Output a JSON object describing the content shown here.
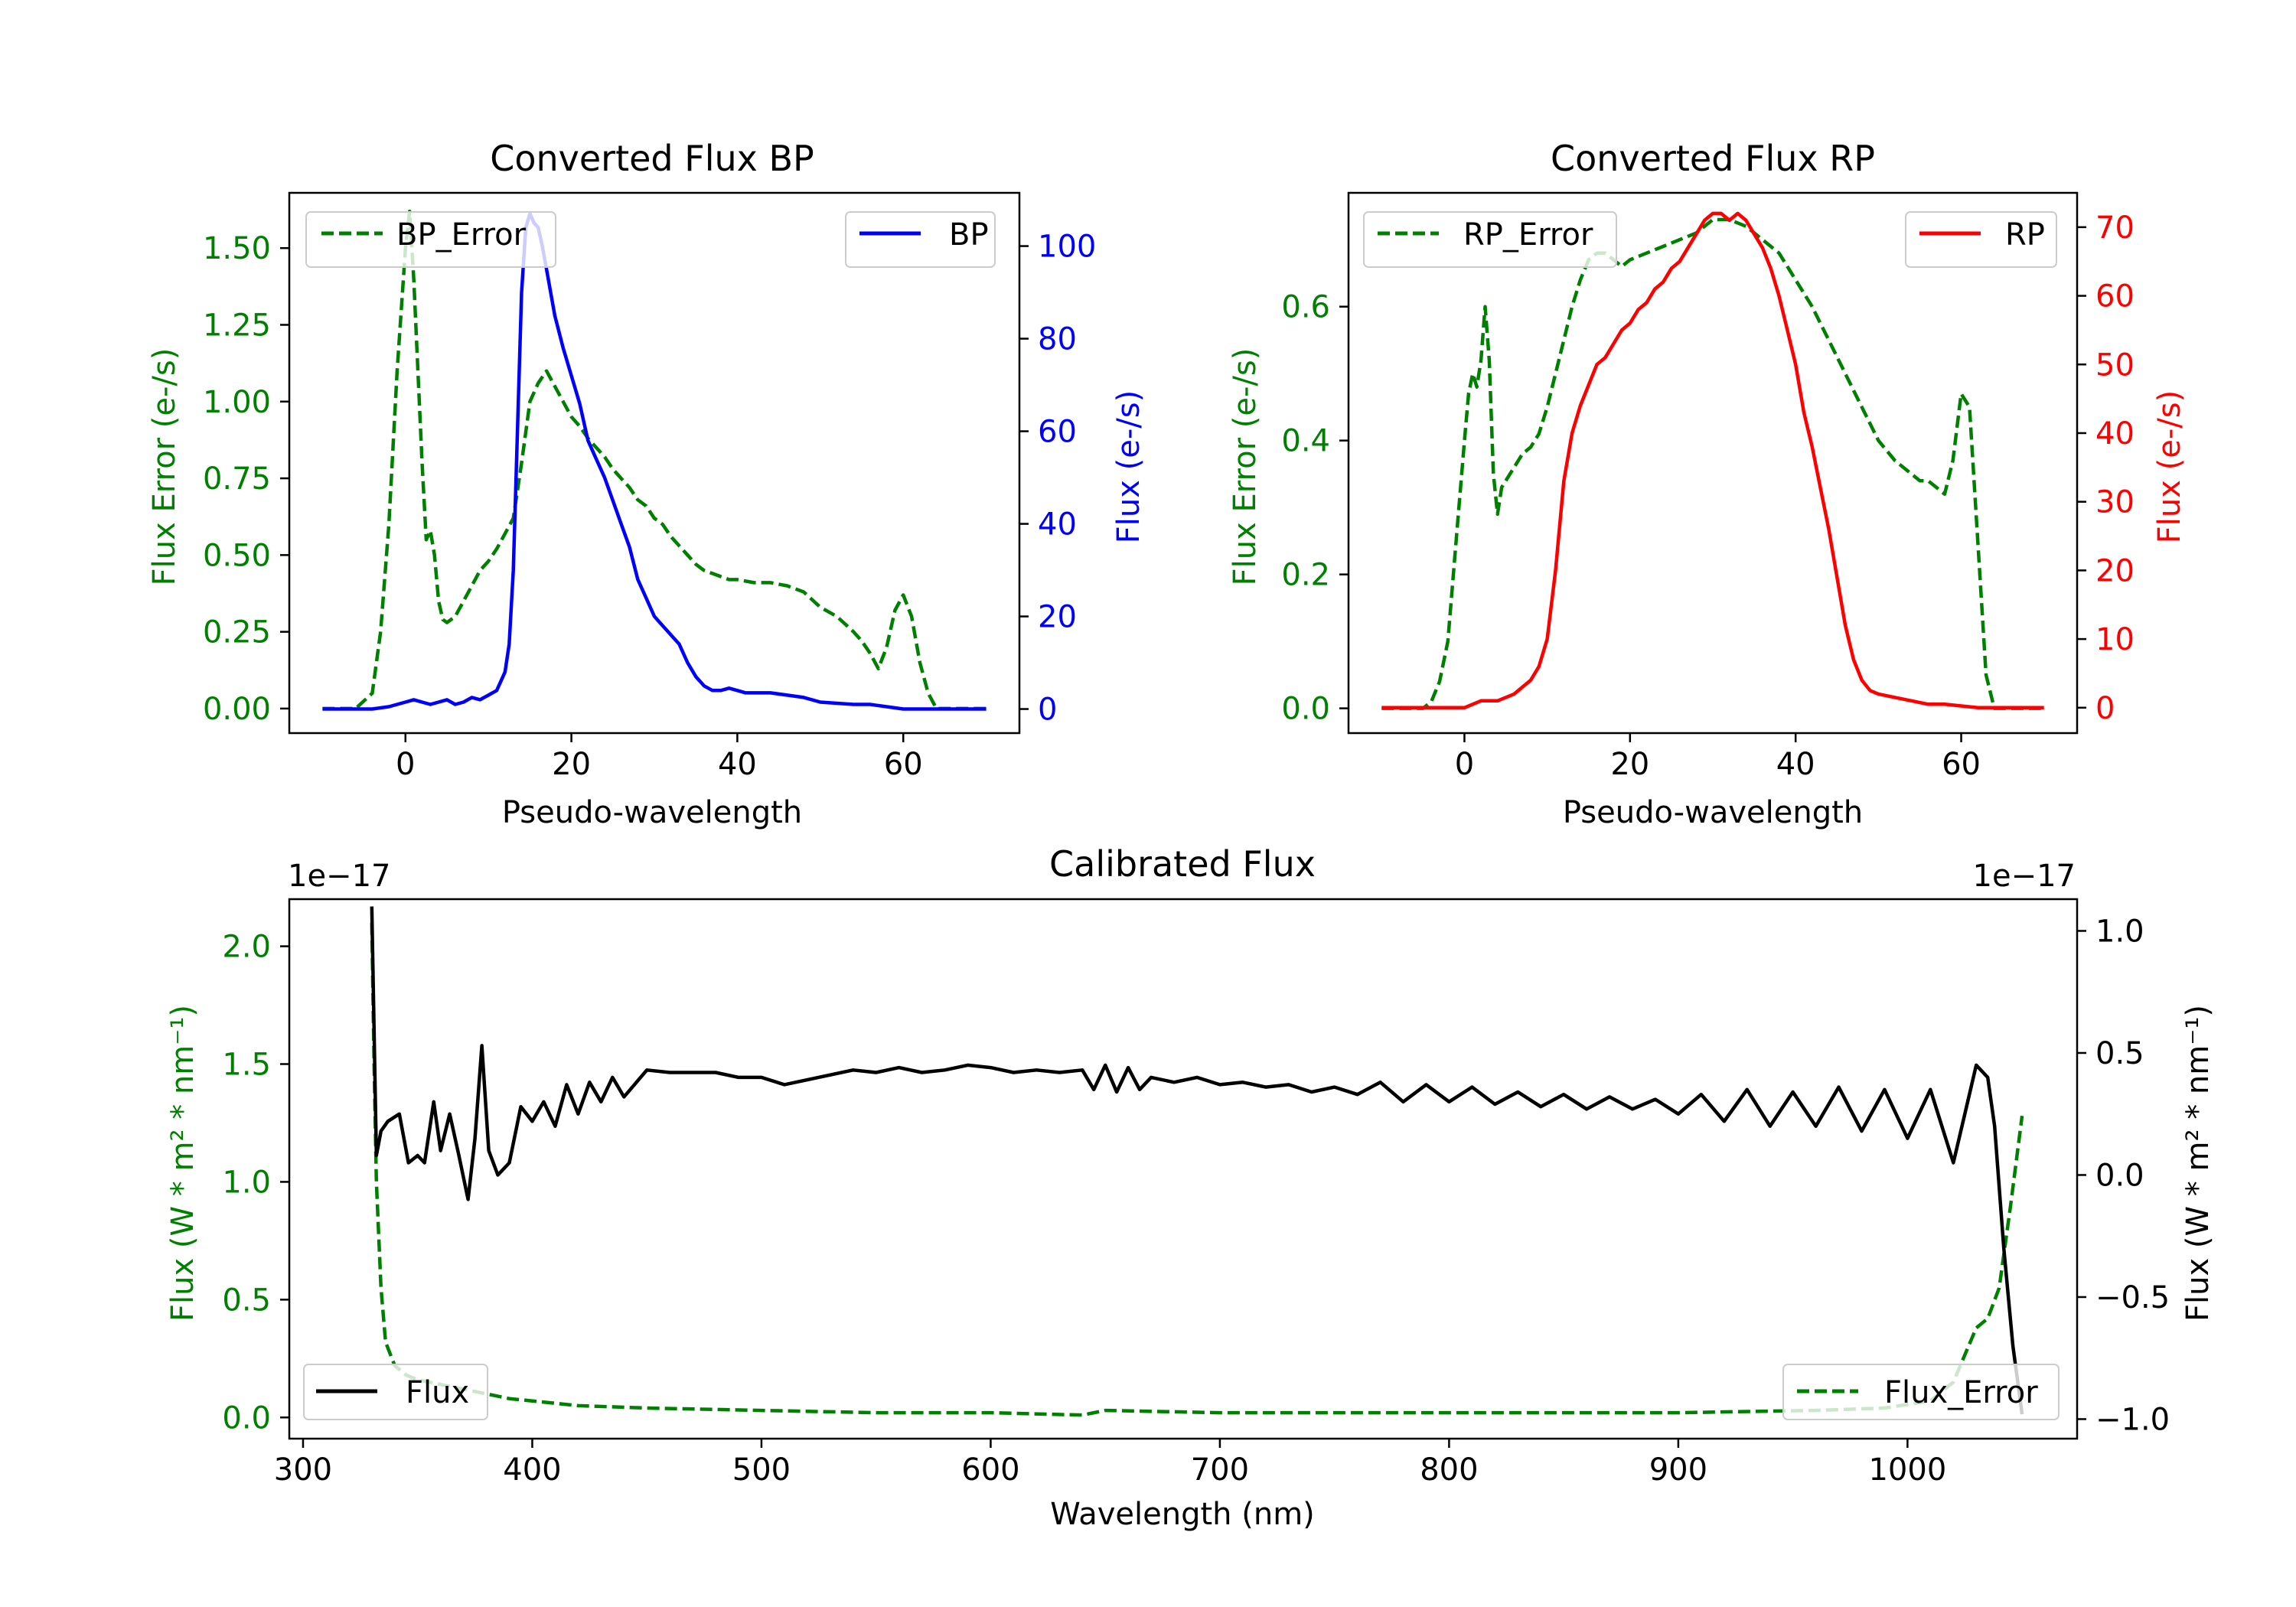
{
  "colors": {
    "bp": "#0000ff",
    "rp": "#ff0000",
    "error": "#008000",
    "flux": "#000000",
    "axis": "#000000",
    "legend_border": "#cccccc"
  },
  "chart_data": [
    {
      "type": "line",
      "title": "Converted Flux BP",
      "xlabel": "Pseudo-wavelength",
      "ylabel_left": "Flux Error (e-/s)",
      "ylabel_right": "Flux (e-/s)",
      "xlim": [
        -14,
        74
      ],
      "ylim_left": [
        -0.08,
        1.68
      ],
      "ylim_right": [
        -5.2,
        111.5
      ],
      "x_ticks": [
        0,
        20,
        40,
        60
      ],
      "y_ticks_left": [
        "0.00",
        "0.25",
        "0.50",
        "0.75",
        "1.00",
        "1.25",
        "1.50"
      ],
      "y_ticks_right": [
        "0",
        "20",
        "40",
        "60",
        "80",
        "100"
      ],
      "legend_left": "BP_Error",
      "legend_right": "BP",
      "series": [
        {
          "name": "BP_Error",
          "axis": "left",
          "style": "dashed",
          "color": "#008000",
          "x": [
            -10,
            -6,
            -4,
            -3,
            -2,
            -1,
            0,
            0.5,
            1,
            2,
            2.5,
            3,
            3.5,
            4,
            4.5,
            5,
            6,
            7,
            8,
            9,
            10,
            11,
            12,
            13,
            14,
            15,
            16,
            17,
            18,
            19,
            20,
            21,
            22,
            23,
            24,
            25,
            26,
            27,
            28,
            29,
            30,
            31,
            32,
            33,
            34,
            35,
            36,
            37,
            38,
            39,
            40,
            42,
            44,
            46,
            48,
            50,
            52,
            54,
            55,
            56,
            57,
            58,
            59,
            60,
            61,
            62,
            63,
            64,
            66,
            70
          ],
          "values": [
            0.0,
            0.0,
            0.05,
            0.25,
            0.6,
            1.1,
            1.5,
            1.62,
            1.4,
            0.8,
            0.55,
            0.58,
            0.5,
            0.35,
            0.29,
            0.28,
            0.3,
            0.35,
            0.4,
            0.45,
            0.48,
            0.52,
            0.57,
            0.62,
            0.8,
            1.0,
            1.06,
            1.1,
            1.05,
            1.0,
            0.95,
            0.92,
            0.88,
            0.85,
            0.82,
            0.78,
            0.75,
            0.72,
            0.68,
            0.66,
            0.62,
            0.6,
            0.56,
            0.53,
            0.5,
            0.47,
            0.45,
            0.44,
            0.43,
            0.42,
            0.42,
            0.41,
            0.41,
            0.4,
            0.38,
            0.33,
            0.3,
            0.25,
            0.22,
            0.18,
            0.13,
            0.2,
            0.32,
            0.37,
            0.3,
            0.15,
            0.05,
            0.0,
            0.0,
            0.0
          ]
        },
        {
          "name": "BP",
          "axis": "right",
          "style": "solid",
          "color": "#0000ff",
          "x": [
            -10,
            -4,
            -2,
            -1,
            0,
            1,
            2,
            3,
            4,
            5,
            6,
            7,
            8,
            9,
            10,
            11,
            12,
            12.5,
            13,
            13.5,
            14,
            14.5,
            15,
            15.5,
            16,
            16.5,
            17,
            17.5,
            18,
            19,
            20,
            21,
            22,
            23,
            24,
            25,
            26,
            27,
            28,
            29,
            30,
            31,
            32,
            33,
            34,
            35,
            36,
            37,
            38,
            39,
            40,
            41,
            42,
            44,
            46,
            48,
            50,
            54,
            56,
            58,
            60,
            62,
            66,
            70
          ],
          "values": [
            0,
            0,
            0.5,
            1,
            1.5,
            2,
            1.5,
            1,
            1.5,
            2,
            1,
            1.5,
            2.5,
            2,
            3,
            4,
            8,
            14,
            30,
            60,
            90,
            104,
            107,
            105,
            104,
            100,
            95,
            90,
            85,
            78,
            72,
            66,
            58,
            54,
            50,
            45,
            40,
            35,
            28,
            24,
            20,
            18,
            16,
            14,
            10,
            7,
            5,
            4,
            4,
            4.5,
            4,
            3.5,
            3.5,
            3.5,
            3,
            2.5,
            1.5,
            1,
            1,
            0.5,
            0,
            0,
            0,
            0
          ]
        }
      ]
    },
    {
      "type": "line",
      "title": "Converted Flux RP",
      "xlabel": "Pseudo-wavelength",
      "ylabel_left": "Flux Error (e-/s)",
      "ylabel_right": "Flux (e-/s)",
      "xlim": [
        -14,
        74
      ],
      "ylim_left": [
        -0.037,
        0.77
      ],
      "ylim_right": [
        -3.7,
        75
      ],
      "x_ticks": [
        0,
        20,
        40,
        60
      ],
      "y_ticks_left": [
        "0.0",
        "0.2",
        "0.4",
        "0.6"
      ],
      "y_ticks_right": [
        "0",
        "10",
        "20",
        "30",
        "40",
        "50",
        "60",
        "70"
      ],
      "legend_left": "RP_Error",
      "legend_right": "RP",
      "series": [
        {
          "name": "RP_Error",
          "axis": "left",
          "style": "dashed",
          "color": "#008000",
          "x": [
            -10,
            -5,
            -4,
            -3,
            -2,
            -1,
            0,
            0.5,
            1,
            1.5,
            2,
            2.5,
            3,
            3.5,
            4,
            4.5,
            5,
            6,
            7,
            8,
            9,
            10,
            11,
            12,
            13,
            14,
            15,
            16,
            17,
            18,
            19,
            20,
            22,
            24,
            26,
            28,
            30,
            32,
            34,
            36,
            38,
            40,
            42,
            44,
            46,
            48,
            50,
            52,
            54,
            55,
            56,
            57,
            58,
            59,
            60,
            61,
            62,
            63,
            64,
            66,
            70
          ],
          "values": [
            0.0,
            0.0,
            0.01,
            0.04,
            0.1,
            0.25,
            0.4,
            0.47,
            0.5,
            0.48,
            0.52,
            0.6,
            0.52,
            0.35,
            0.29,
            0.33,
            0.34,
            0.36,
            0.38,
            0.39,
            0.41,
            0.45,
            0.5,
            0.55,
            0.6,
            0.64,
            0.67,
            0.68,
            0.68,
            0.67,
            0.66,
            0.67,
            0.68,
            0.69,
            0.7,
            0.71,
            0.73,
            0.73,
            0.72,
            0.7,
            0.68,
            0.64,
            0.6,
            0.55,
            0.5,
            0.45,
            0.4,
            0.37,
            0.35,
            0.34,
            0.34,
            0.33,
            0.32,
            0.37,
            0.47,
            0.45,
            0.25,
            0.05,
            0.0,
            0.0,
            0.0
          ]
        },
        {
          "name": "RP",
          "axis": "right",
          "style": "solid",
          "color": "#ff0000",
          "x": [
            -10,
            -5,
            -2,
            0,
            1,
            2,
            3,
            4,
            5,
            6,
            7,
            8,
            9,
            10,
            11,
            12,
            13,
            14,
            15,
            16,
            17,
            18,
            19,
            20,
            21,
            22,
            23,
            24,
            25,
            26,
            27,
            28,
            29,
            30,
            31,
            32,
            33,
            34,
            35,
            36,
            37,
            38,
            39,
            40,
            41,
            42,
            43,
            44,
            45,
            46,
            47,
            48,
            49,
            50,
            52,
            54,
            56,
            58,
            62,
            66,
            70
          ],
          "values": [
            0,
            0,
            0,
            0,
            0.5,
            1,
            1,
            1,
            1.5,
            2,
            3,
            4,
            6,
            10,
            20,
            33,
            40,
            44,
            47,
            50,
            51,
            53,
            55,
            56,
            58,
            59,
            61,
            62,
            64,
            65,
            67,
            69,
            71,
            72,
            72,
            71,
            72,
            71,
            69,
            67,
            64,
            60,
            55,
            50,
            43,
            38,
            32,
            26,
            19,
            12,
            7,
            4,
            2.5,
            2,
            1.5,
            1,
            0.5,
            0.5,
            0,
            0,
            0
          ]
        }
      ]
    },
    {
      "type": "line",
      "title": "Calibrated Flux",
      "xlabel": "Wavelength (nm)",
      "ylabel_left": "Flux (W * m² * nm⁻¹)",
      "ylabel_right": "Flux (W * m² * nm⁻¹)",
      "offset_left": "1e−17",
      "offset_right": "1e−17",
      "xlim": [
        294,
        1074
      ],
      "ylim_left": [
        -0.09,
        2.2
      ],
      "ylim_right": [
        -1.08,
        1.13
      ],
      "x_ticks": [
        300,
        400,
        500,
        600,
        700,
        800,
        900,
        1000
      ],
      "y_ticks_left": [
        "0.0",
        "0.5",
        "1.0",
        "1.5",
        "2.0"
      ],
      "y_ticks_right": [
        "−1.0",
        "−0.5",
        "0.0",
        "0.5",
        "1.0"
      ],
      "legend_left": "Flux",
      "legend_right": "Flux_Error",
      "series": [
        {
          "name": "Flux_Error",
          "axis": "left",
          "style": "dashed",
          "color": "#008000",
          "x": [
            330,
            331,
            332,
            334,
            336,
            340,
            345,
            350,
            360,
            370,
            380,
            390,
            400,
            420,
            450,
            500,
            550,
            600,
            640,
            650,
            700,
            800,
            900,
            960,
            990,
            1010,
            1020,
            1030,
            1035,
            1040,
            1045,
            1050
          ],
          "values": [
            2.1,
            1.5,
            1.0,
            0.55,
            0.32,
            0.22,
            0.18,
            0.16,
            0.14,
            0.12,
            0.1,
            0.08,
            0.07,
            0.05,
            0.04,
            0.03,
            0.02,
            0.02,
            0.01,
            0.03,
            0.02,
            0.02,
            0.02,
            0.03,
            0.04,
            0.07,
            0.15,
            0.38,
            0.42,
            0.55,
            0.9,
            1.28
          ]
        },
        {
          "name": "Flux",
          "axis": "right",
          "style": "solid",
          "color": "#000000",
          "x": [
            330,
            332,
            334,
            337,
            342,
            346,
            350,
            353,
            357,
            360,
            364,
            368,
            372,
            375,
            378,
            381,
            385,
            390,
            395,
            400,
            405,
            410,
            415,
            420,
            425,
            430,
            435,
            440,
            450,
            460,
            470,
            480,
            490,
            500,
            510,
            520,
            530,
            540,
            550,
            560,
            570,
            580,
            590,
            600,
            610,
            620,
            630,
            640,
            645,
            650,
            655,
            660,
            665,
            670,
            680,
            690,
            700,
            710,
            720,
            730,
            740,
            750,
            760,
            770,
            780,
            790,
            800,
            810,
            820,
            830,
            840,
            850,
            860,
            870,
            880,
            890,
            900,
            910,
            920,
            930,
            940,
            950,
            960,
            970,
            980,
            990,
            1000,
            1010,
            1020,
            1025,
            1030,
            1035,
            1038,
            1042,
            1046,
            1050
          ],
          "values": [
            1.1,
            0.08,
            0.18,
            0.22,
            0.25,
            0.05,
            0.08,
            0.05,
            0.3,
            0.1,
            0.25,
            0.08,
            -0.1,
            0.15,
            0.53,
            0.1,
            0.0,
            0.05,
            0.28,
            0.22,
            0.3,
            0.2,
            0.37,
            0.25,
            0.38,
            0.3,
            0.4,
            0.32,
            0.43,
            0.42,
            0.42,
            0.42,
            0.4,
            0.4,
            0.37,
            0.39,
            0.41,
            0.43,
            0.42,
            0.44,
            0.42,
            0.43,
            0.45,
            0.44,
            0.42,
            0.43,
            0.42,
            0.43,
            0.35,
            0.45,
            0.34,
            0.44,
            0.35,
            0.4,
            0.38,
            0.4,
            0.37,
            0.38,
            0.36,
            0.37,
            0.34,
            0.36,
            0.33,
            0.38,
            0.3,
            0.37,
            0.3,
            0.36,
            0.29,
            0.34,
            0.28,
            0.33,
            0.27,
            0.32,
            0.27,
            0.31,
            0.25,
            0.33,
            0.22,
            0.35,
            0.2,
            0.34,
            0.2,
            0.36,
            0.18,
            0.35,
            0.15,
            0.35,
            0.05,
            0.25,
            0.45,
            0.4,
            0.2,
            -0.3,
            -0.7,
            -0.98
          ]
        }
      ]
    }
  ]
}
